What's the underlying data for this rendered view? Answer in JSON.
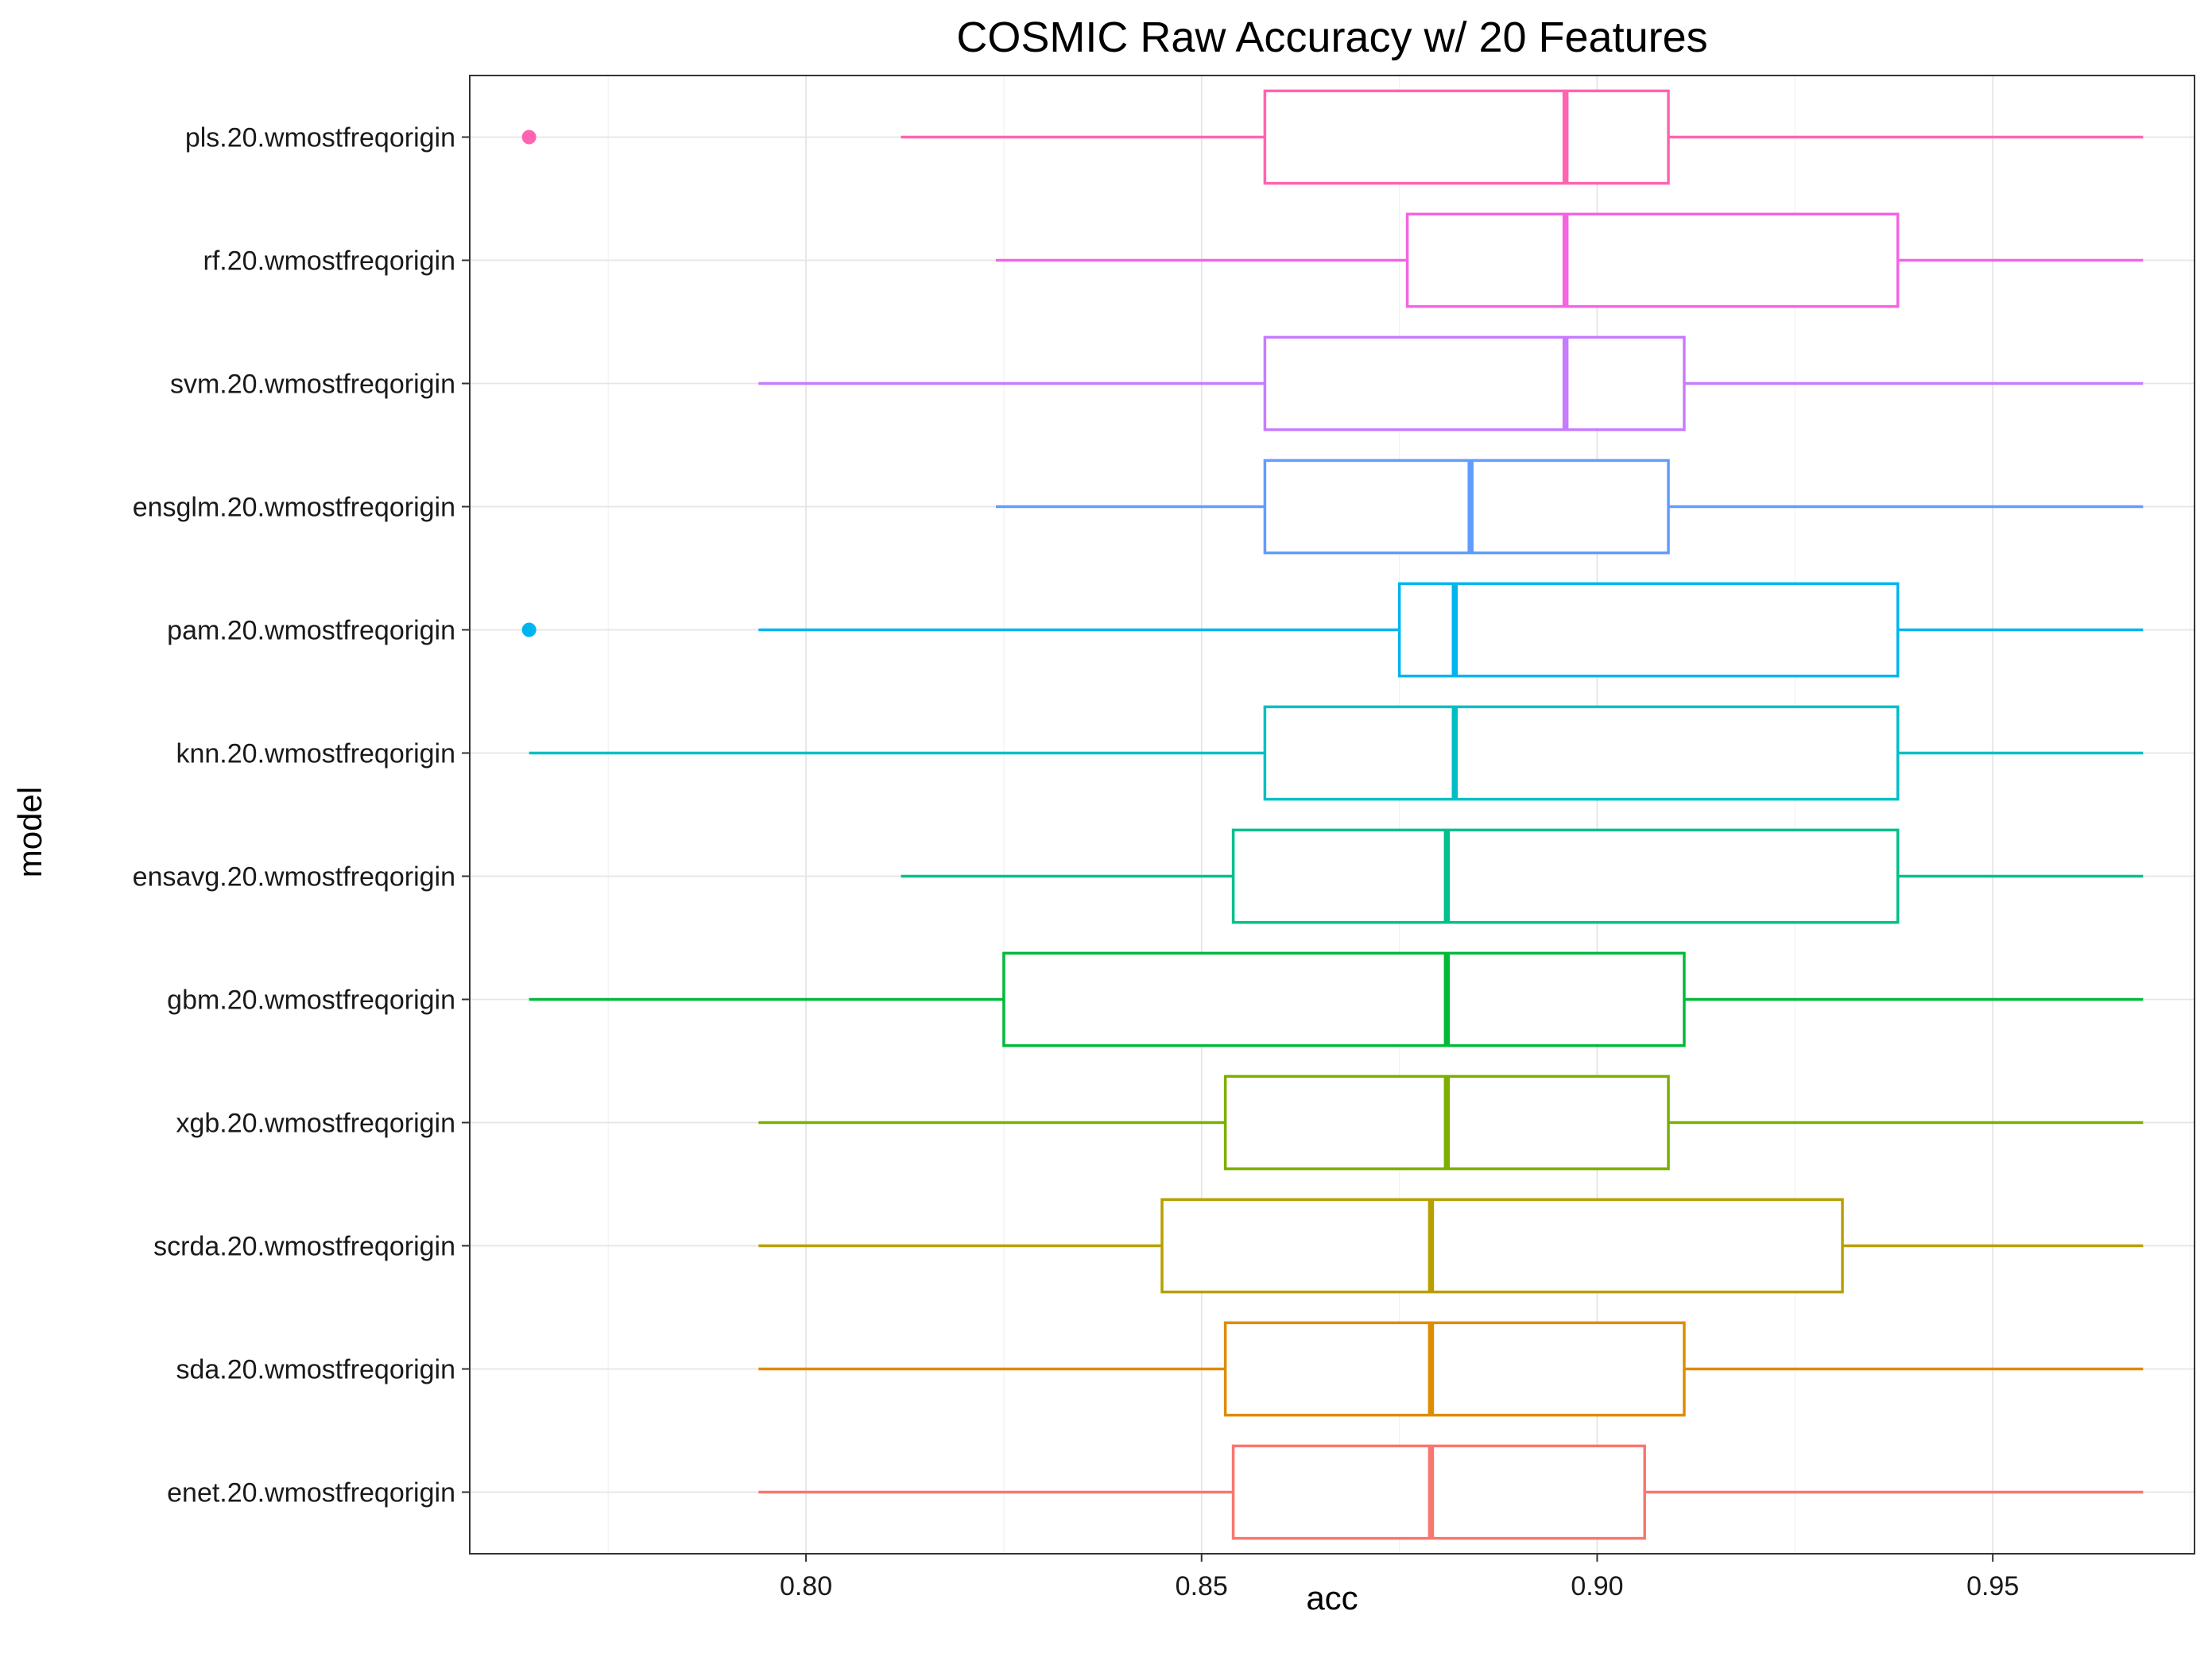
{
  "chart_data": {
    "type": "boxplot",
    "orientation": "horizontal",
    "title": "COSMIC Raw Accuracy w/ 20 Features",
    "xlabel": "acc",
    "ylabel": "model",
    "xlim": [
      0.7575,
      0.9755
    ],
    "xticks": [
      0.8,
      0.85,
      0.9,
      0.95
    ],
    "xtick_labels": [
      "0.80",
      "0.85",
      "0.90",
      "0.95"
    ],
    "grid": true,
    "legend": "none",
    "series": [
      {
        "name": "enet.20.wmostfreqorigin",
        "color": "#F8766D",
        "whisker_low": 0.794,
        "q1": 0.854,
        "median": 0.879,
        "q3": 0.906,
        "whisker_high": 0.969,
        "outliers": []
      },
      {
        "name": "sda.20.wmostfreqorigin",
        "color": "#DE8C00",
        "whisker_low": 0.794,
        "q1": 0.853,
        "median": 0.879,
        "q3": 0.911,
        "whisker_high": 0.969,
        "outliers": []
      },
      {
        "name": "scrda.20.wmostfreqorigin",
        "color": "#B79F00",
        "whisker_low": 0.794,
        "q1": 0.845,
        "median": 0.879,
        "q3": 0.931,
        "whisker_high": 0.969,
        "outliers": []
      },
      {
        "name": "xgb.20.wmostfreqorigin",
        "color": "#7CAE00",
        "whisker_low": 0.794,
        "q1": 0.853,
        "median": 0.881,
        "q3": 0.909,
        "whisker_high": 0.969,
        "outliers": []
      },
      {
        "name": "gbm.20.wmostfreqorigin",
        "color": "#00BA38",
        "whisker_low": 0.765,
        "q1": 0.825,
        "median": 0.881,
        "q3": 0.911,
        "whisker_high": 0.969,
        "outliers": []
      },
      {
        "name": "ensavg.20.wmostfreqorigin",
        "color": "#00C08B",
        "whisker_low": 0.812,
        "q1": 0.854,
        "median": 0.881,
        "q3": 0.938,
        "whisker_high": 0.969,
        "outliers": []
      },
      {
        "name": "knn.20.wmostfreqorigin",
        "color": "#00BFC4",
        "whisker_low": 0.765,
        "q1": 0.858,
        "median": 0.882,
        "q3": 0.938,
        "whisker_high": 0.969,
        "outliers": []
      },
      {
        "name": "pam.20.wmostfreqorigin",
        "color": "#00B4F0",
        "whisker_low": 0.794,
        "q1": 0.875,
        "median": 0.882,
        "q3": 0.938,
        "whisker_high": 0.969,
        "outliers": [
          0.765
        ]
      },
      {
        "name": "ensglm.20.wmostfreqorigin",
        "color": "#619CFF",
        "whisker_low": 0.824,
        "q1": 0.858,
        "median": 0.884,
        "q3": 0.909,
        "whisker_high": 0.969,
        "outliers": []
      },
      {
        "name": "svm.20.wmostfreqorigin",
        "color": "#C77CFF",
        "whisker_low": 0.794,
        "q1": 0.858,
        "median": 0.896,
        "q3": 0.911,
        "whisker_high": 0.969,
        "outliers": []
      },
      {
        "name": "rf.20.wmostfreqorigin",
        "color": "#F564E3",
        "whisker_low": 0.824,
        "q1": 0.876,
        "median": 0.896,
        "q3": 0.938,
        "whisker_high": 0.969,
        "outliers": []
      },
      {
        "name": "pls.20.wmostfreqorigin",
        "color": "#FF64B0",
        "whisker_low": 0.812,
        "q1": 0.858,
        "median": 0.896,
        "q3": 0.909,
        "whisker_high": 0.969,
        "outliers": [
          0.765
        ]
      }
    ]
  }
}
